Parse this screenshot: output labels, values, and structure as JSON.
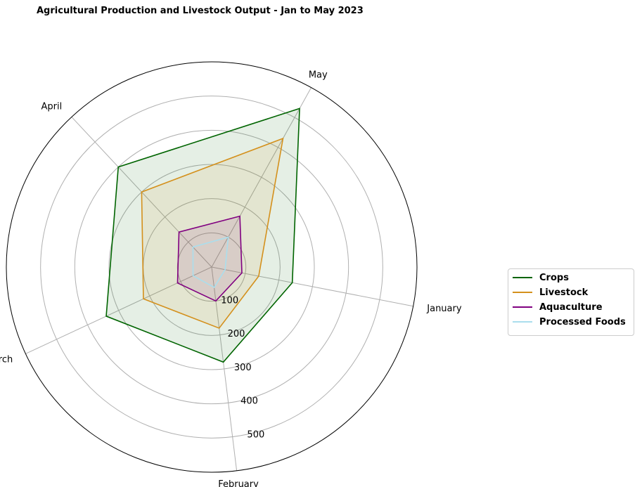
{
  "title": "Agricultural Production and Livestock Output - Jan to May 2023",
  "chart_data": {
    "type": "radar",
    "categories": [
      "January",
      "February",
      "March",
      "April",
      "May"
    ],
    "radial_ticks": [
      "100",
      "200",
      "300",
      "400",
      "500"
    ],
    "rlim": [
      0,
      600
    ],
    "grid": true,
    "legend_position": "right",
    "series": [
      {
        "name": "Crops",
        "values": [
          240,
          280,
          340,
          400,
          530
        ],
        "color": "#006400",
        "fill": true
      },
      {
        "name": "Livestock",
        "values": [
          140,
          180,
          220,
          300,
          430
        ],
        "color": "#d4901c",
        "fill": true
      },
      {
        "name": "Aquaculture",
        "values": [
          90,
          100,
          110,
          140,
          170
        ],
        "color": "#800080",
        "fill": true
      },
      {
        "name": "Processed Foods",
        "values": [
          40,
          60,
          60,
          80,
          100
        ],
        "color": "#aadeed",
        "fill": false
      }
    ]
  }
}
